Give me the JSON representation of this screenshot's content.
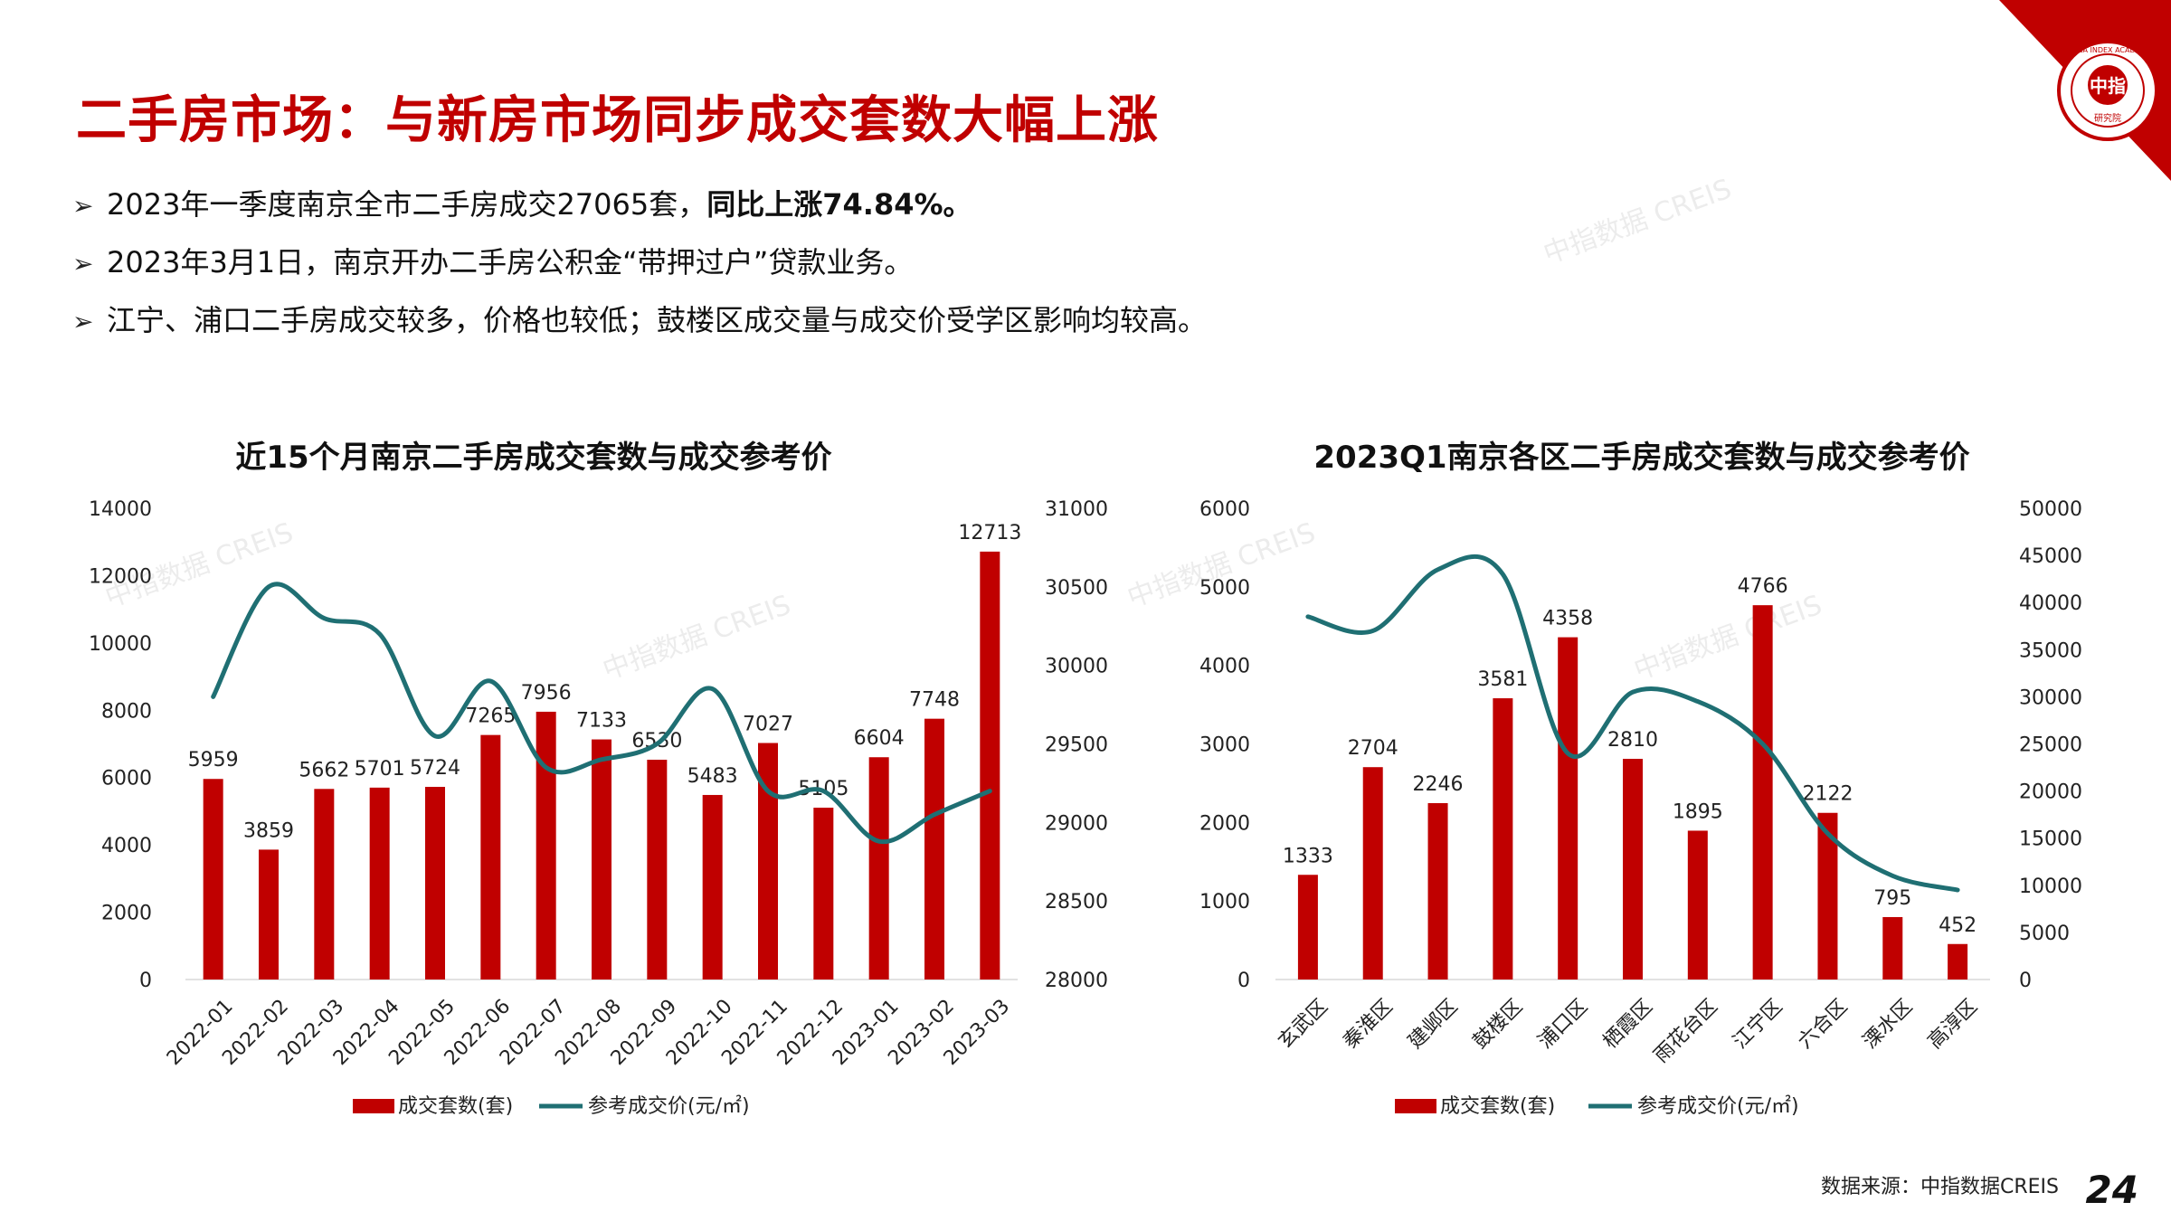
{
  "page": {
    "title": "二手房市场：与新房市场同步成交套数大幅上涨",
    "bullets": {
      "b1_text": "2023年一季度南京全市二手房成交27065套，",
      "b1_bold": "同比上涨74.84%。",
      "b2_text": "2023年3月1日，南京开办二手房公积金“带押过户”贷款业务。",
      "b3_text": "江宁、浦口二手房成交较多，价格也较低；鼓楼区成交量与成交价受学区影响均较高。"
    },
    "bullet_marker": "➢",
    "source": "数据来源：中指数据CREIS",
    "page_number": "24",
    "logo_text": "中指",
    "logo_ring_text": "CHINA INDEX ACADEMY",
    "logo_sub": "研究院",
    "watermark": "中指数据 CREIS"
  },
  "colors": {
    "title": "#c00000",
    "bar": "#c00000",
    "line": "#1f6f73"
  },
  "chart_data": [
    {
      "type": "bar",
      "title": "近15个月南京二手房成交套数与成交参考价",
      "categories": [
        "2022-01",
        "2022-02",
        "2022-03",
        "2022-04",
        "2022-05",
        "2022-06",
        "2022-07",
        "2022-08",
        "2022-09",
        "2022-10",
        "2022-11",
        "2022-12",
        "2023-01",
        "2023-02",
        "2023-03"
      ],
      "series": [
        {
          "name": "成交套数(套)",
          "type": "bar",
          "axis": "left",
          "values": [
            5959,
            3859,
            5662,
            5701,
            5724,
            7265,
            7956,
            7133,
            6530,
            5483,
            7027,
            5105,
            6604,
            7748,
            12713
          ]
        },
        {
          "name": "参考成交价(元/㎡)",
          "type": "line",
          "axis": "right",
          "values": [
            29800,
            30500,
            30300,
            30200,
            29550,
            29900,
            29350,
            29400,
            29500,
            29850,
            29200,
            29200,
            28880,
            29050,
            29200
          ]
        }
      ],
      "ylim_left": [
        0,
        14000
      ],
      "ylim_right": [
        28000,
        31000
      ],
      "yticks_left": [
        "0",
        "2000",
        "4000",
        "6000",
        "8000",
        "10000",
        "12000",
        "14000"
      ],
      "yticks_right": [
        "28000",
        "28500",
        "29000",
        "29500",
        "30000",
        "30500",
        "31000"
      ],
      "legend": "bottom"
    },
    {
      "type": "bar",
      "title": "2023Q1南京各区二手房成交套数与成交参考价",
      "categories": [
        "玄武区",
        "秦淮区",
        "建邺区",
        "鼓楼区",
        "浦口区",
        "栖霞区",
        "雨花台区",
        "江宁区",
        "六合区",
        "溧水区",
        "高淳区"
      ],
      "series": [
        {
          "name": "成交套数(套)",
          "type": "bar",
          "axis": "left",
          "values": [
            1333,
            2704,
            2246,
            3581,
            4358,
            2810,
            1895,
            4766,
            2122,
            795,
            452
          ]
        },
        {
          "name": "参考成交价(元/㎡)",
          "type": "line",
          "axis": "right",
          "values": [
            38500,
            37000,
            43500,
            43000,
            24000,
            30500,
            29500,
            25000,
            15500,
            11000,
            9500
          ]
        }
      ],
      "ylim_left": [
        0,
        6000
      ],
      "ylim_right": [
        0,
        50000
      ],
      "yticks_left": [
        "0",
        "1000",
        "2000",
        "3000",
        "4000",
        "5000",
        "6000"
      ],
      "yticks_right": [
        "0",
        "5000",
        "10000",
        "15000",
        "20000",
        "25000",
        "30000",
        "35000",
        "40000",
        "45000",
        "50000"
      ],
      "legend": "bottom"
    }
  ]
}
